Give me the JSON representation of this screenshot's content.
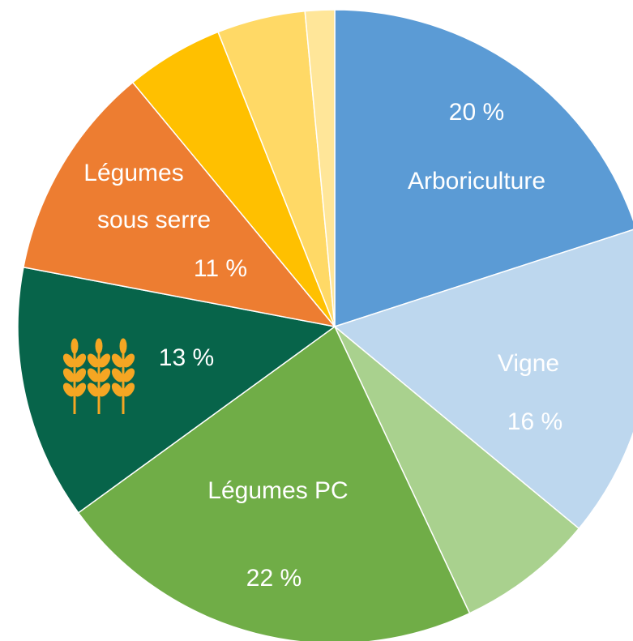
{
  "chart_data": {
    "type": "pie",
    "categories": [
      "Arboriculture",
      "Vigne",
      null,
      "Légumes PC",
      null,
      "Légumes sous serre",
      null,
      null,
      null
    ],
    "values": [
      20,
      16,
      7,
      22,
      13,
      11,
      5,
      4.5,
      1.5
    ],
    "value_labels": [
      "20 %",
      "16 %",
      null,
      "22 %",
      "13 %",
      "11 %",
      null,
      null,
      null
    ],
    "colors": [
      "#5b9bd5",
      "#bdd7ee",
      "#a9d18e",
      "#70ad47",
      "#07644a",
      "#ed7d31",
      "#ffc000",
      "#ffd966",
      "#ffe699"
    ]
  }
}
